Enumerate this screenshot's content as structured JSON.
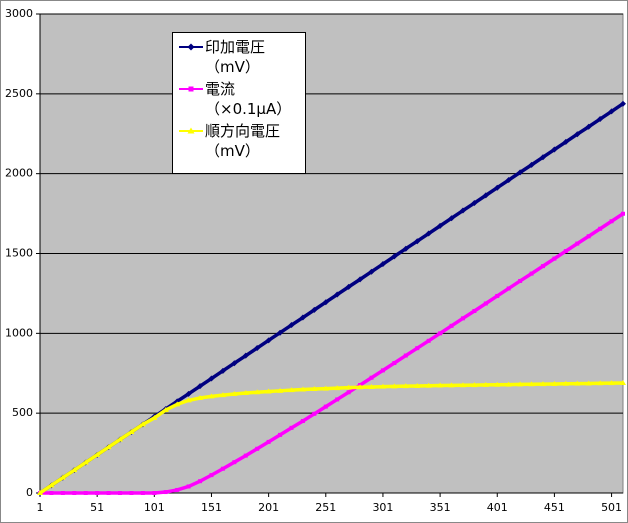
{
  "chart_data": {
    "type": "line",
    "x": [
      1,
      11,
      21,
      31,
      41,
      51,
      61,
      71,
      81,
      91,
      101,
      111,
      121,
      131,
      141,
      151,
      161,
      171,
      181,
      191,
      201,
      211,
      221,
      231,
      241,
      251,
      261,
      271,
      281,
      291,
      301,
      311,
      321,
      331,
      341,
      351,
      361,
      371,
      381,
      391,
      401,
      411,
      421,
      431,
      441,
      451,
      461,
      471,
      481,
      491,
      501,
      511
    ],
    "series": [
      {
        "name": "印加電圧\n（mV）",
        "color": "#000080",
        "marker": "diamond",
        "values": [
          0,
          48,
          96,
          143,
          191,
          239,
          287,
          335,
          382,
          430,
          478,
          526,
          574,
          621,
          669,
          717,
          765,
          813,
          860,
          908,
          956,
          1004,
          1052,
          1099,
          1147,
          1195,
          1243,
          1291,
          1338,
          1386,
          1434,
          1482,
          1530,
          1577,
          1625,
          1673,
          1721,
          1769,
          1816,
          1864,
          1912,
          1960,
          2008,
          2055,
          2103,
          2151,
          2199,
          2247,
          2294,
          2342,
          2390,
          2438
        ]
      },
      {
        "name": "電流\n（×0.1μA）",
        "color": "#ff00ff",
        "marker": "square",
        "values": [
          0,
          0,
          0,
          0,
          0,
          0,
          0,
          0,
          0,
          0,
          0,
          6,
          19,
          41,
          74,
          112,
          152,
          193,
          234,
          277,
          320,
          364,
          408,
          451,
          496,
          541,
          586,
          631,
          676,
          722,
          768,
          814,
          861,
          907,
          953,
          1000,
          1047,
          1094,
          1140,
          1187,
          1234,
          1281,
          1328,
          1374,
          1421,
          1468,
          1515,
          1562,
          1608,
          1655,
          1702,
          1749
        ]
      },
      {
        "name": "順方向電圧\n（mV）",
        "color": "#ffff00",
        "marker": "triangle",
        "values": [
          0,
          48,
          96,
          143,
          191,
          239,
          287,
          335,
          382,
          430,
          470,
          520,
          555,
          580,
          595,
          605,
          613,
          620,
          626,
          631,
          636,
          640,
          644,
          648,
          651,
          654,
          657,
          660,
          662,
          664,
          666,
          668,
          669,
          670,
          672,
          673,
          674,
          675,
          676,
          677,
          678,
          679,
          680,
          681,
          682,
          683,
          684,
          685,
          686,
          687,
          688,
          689
        ]
      }
    ],
    "xlim": [
      1,
      511
    ],
    "xticks": [
      1,
      51,
      101,
      151,
      201,
      251,
      301,
      351,
      401,
      451,
      501
    ],
    "ylim": [
      0,
      3000
    ],
    "yticks": [
      0,
      500,
      1000,
      1500,
      2000,
      2500,
      3000
    ],
    "grid": true,
    "plot_background": "#c0c0c0"
  }
}
